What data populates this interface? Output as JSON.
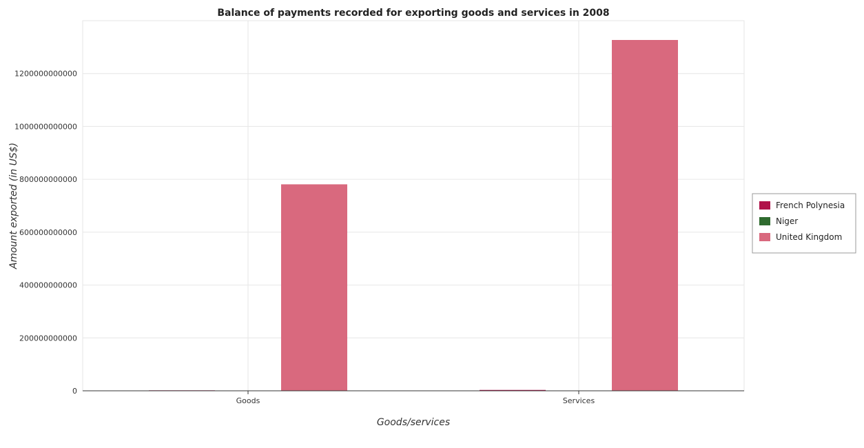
{
  "chart_data": {
    "type": "bar",
    "title": "Balance of payments recorded for exporting goods and services in 2008",
    "xlabel": "Goods/services",
    "ylabel": "Amount exported (in US$)",
    "categories": [
      "Goods",
      "Services"
    ],
    "series": [
      {
        "name": "French Polynesia",
        "color": "#b0124a",
        "values": [
          1800000000,
          3200000000
        ]
      },
      {
        "name": "Niger",
        "color": "#2f6b2f",
        "values": [
          900000000,
          1000000000
        ]
      },
      {
        "name": "United Kingdom",
        "color": "#d9697e",
        "values": [
          781000000000,
          1327000000000
        ]
      }
    ],
    "ylim": [
      0,
      1400000000000
    ],
    "yticks": [
      {
        "value": 0,
        "label": "0"
      },
      {
        "value": 200000000000,
        "label": "200000000000"
      },
      {
        "value": 400000000000,
        "label": "400000000000"
      },
      {
        "value": 600000000000,
        "label": "600000000000"
      },
      {
        "value": 800000000000,
        "label": "800000000000"
      },
      {
        "value": 1000000000000,
        "label": "1000000000000"
      },
      {
        "value": 1200000000000,
        "label": "1200000000000"
      }
    ],
    "grid": true,
    "legend_position": "right"
  }
}
